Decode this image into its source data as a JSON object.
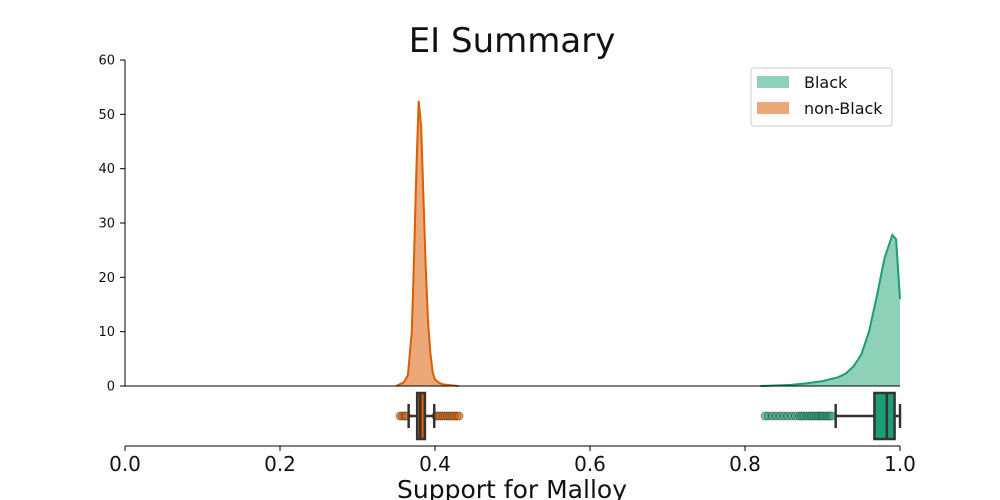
{
  "chart_data": {
    "type": "area",
    "title": "EI Summary",
    "xlabel": "Support for Malloy",
    "ylabel": "",
    "xlim": [
      0.0,
      1.0
    ],
    "ylim": [
      0,
      60
    ],
    "yticks": [
      0,
      10,
      20,
      30,
      40,
      50,
      60
    ],
    "xticks": [
      "0.0",
      "0.2",
      "0.4",
      "0.6",
      "0.8",
      "1.0"
    ],
    "legend_position": "top-right",
    "series": [
      {
        "name": "Black",
        "color": "#1b9e77",
        "fill_color": "#8ed0b8",
        "density": [
          [
            0.82,
            0
          ],
          [
            0.86,
            0.2
          ],
          [
            0.88,
            0.5
          ],
          [
            0.9,
            0.9
          ],
          [
            0.92,
            1.6
          ],
          [
            0.93,
            2.3
          ],
          [
            0.94,
            3.6
          ],
          [
            0.95,
            5.8
          ],
          [
            0.96,
            10
          ],
          [
            0.97,
            16.5
          ],
          [
            0.98,
            23.5
          ],
          [
            0.99,
            27.8
          ],
          [
            0.995,
            27
          ],
          [
            1.0,
            16
          ]
        ],
        "box": {
          "whisker_low": 0.917,
          "q1": 0.967,
          "median": 0.983,
          "q3": 0.993,
          "whisker_high": 1.0
        },
        "outliers": [
          0.826,
          0.83,
          0.835,
          0.84,
          0.845,
          0.85,
          0.855,
          0.86,
          0.865,
          0.87,
          0.873,
          0.876,
          0.88,
          0.883,
          0.886,
          0.889,
          0.892,
          0.895,
          0.898,
          0.9,
          0.903,
          0.906,
          0.909,
          0.912
        ]
      },
      {
        "name": "non-Black",
        "color": "#d95f02",
        "fill_color": "#eca878",
        "density": [
          [
            0.35,
            0
          ],
          [
            0.36,
            0.7
          ],
          [
            0.365,
            2
          ],
          [
            0.37,
            10
          ],
          [
            0.373,
            24
          ],
          [
            0.376,
            40
          ],
          [
            0.379,
            52.5
          ],
          [
            0.382,
            48
          ],
          [
            0.385,
            35
          ],
          [
            0.388,
            22
          ],
          [
            0.391,
            12
          ],
          [
            0.394,
            6
          ],
          [
            0.397,
            2.5
          ],
          [
            0.4,
            1.2
          ],
          [
            0.405,
            0.6
          ],
          [
            0.41,
            0.3
          ],
          [
            0.42,
            0.15
          ],
          [
            0.43,
            0
          ]
        ],
        "box": {
          "whisker_low": 0.366,
          "q1": 0.377,
          "median": 0.381,
          "q3": 0.387,
          "whisker_high": 0.399
        },
        "outliers": [
          0.355,
          0.358,
          0.361,
          0.363,
          0.401,
          0.404,
          0.407,
          0.41,
          0.413,
          0.416,
          0.419,
          0.422,
          0.425,
          0.428,
          0.431
        ]
      }
    ]
  }
}
